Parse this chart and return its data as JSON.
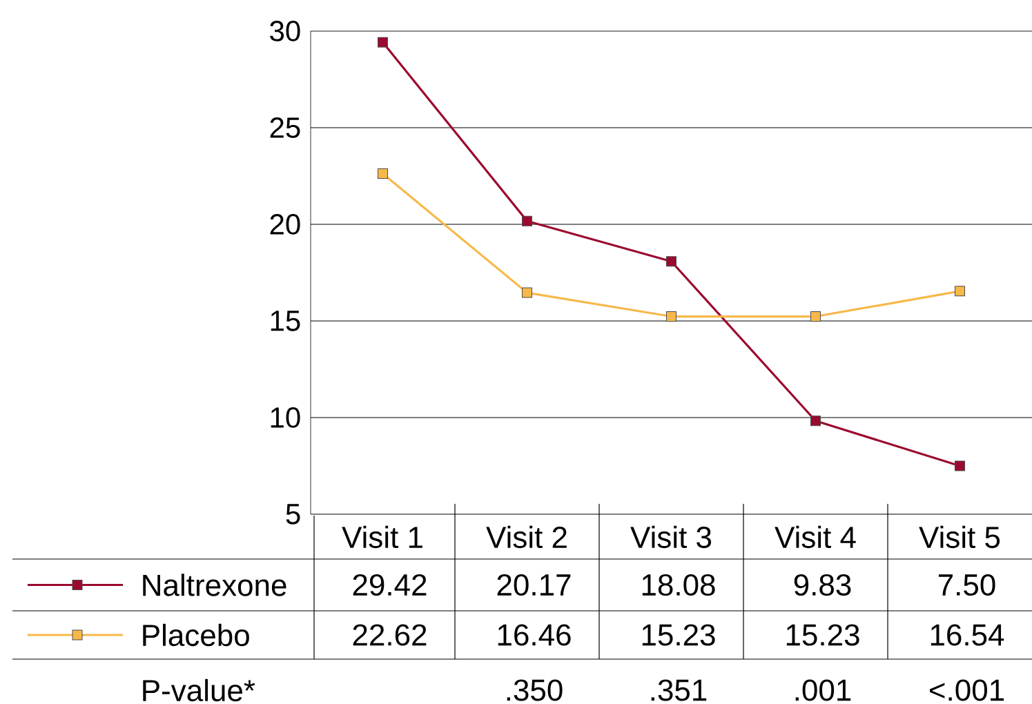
{
  "chart_data": {
    "type": "line",
    "categories": [
      "Visit 1",
      "Visit 2",
      "Visit 3",
      "Visit 4",
      "Visit 5"
    ],
    "series": [
      {
        "name": "Naltrexone",
        "color": "#9b0a2e",
        "values": [
          29.42,
          20.17,
          18.08,
          9.83,
          7.5
        ],
        "value_labels": [
          "29.42",
          "20.17",
          "18.08",
          "9.83",
          "7.50"
        ]
      },
      {
        "name": "Placebo",
        "color": "#f7b84a",
        "values": [
          22.62,
          16.46,
          15.23,
          15.23,
          16.54
        ],
        "value_labels": [
          "22.62",
          "16.46",
          "15.23",
          "15.23",
          "16.54"
        ]
      }
    ],
    "ylim": [
      5,
      30
    ],
    "yticks": [
      5,
      10,
      15,
      20,
      25,
      30
    ],
    "grid": "y",
    "legend": "bottom left",
    "marker": "square",
    "line_style": "solid",
    "annotations": [
      "P-value*",
      ".350",
      ".351",
      ".001",
      "<.001"
    ]
  }
}
